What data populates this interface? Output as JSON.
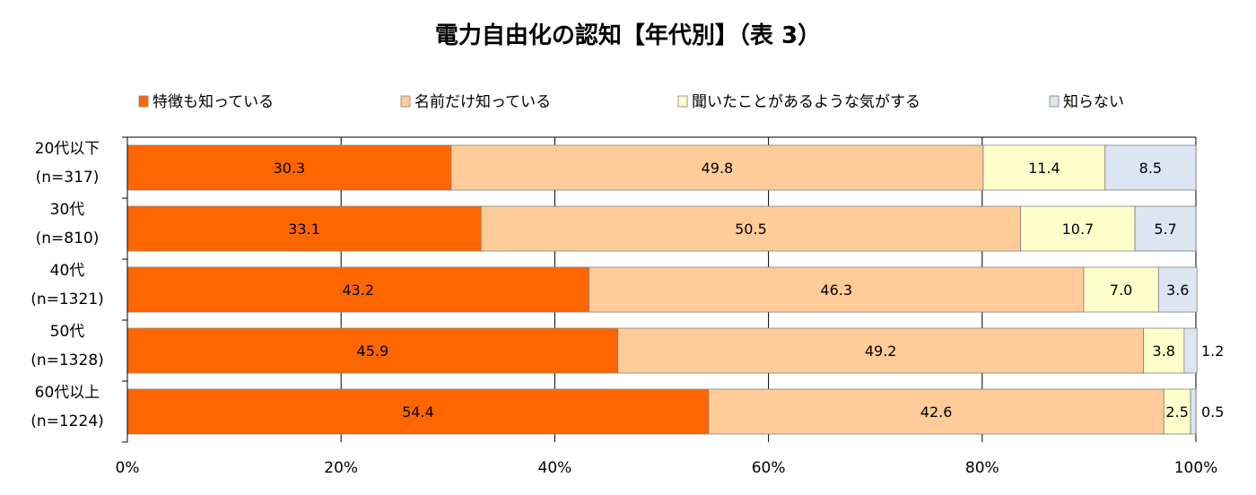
{
  "chart_data": {
    "type": "bar",
    "orientation": "horizontal",
    "stacked": true,
    "title": "電力自由化の認知【年代別】（表 3）",
    "categories": [
      [
        "20代以下",
        "(n=317)"
      ],
      [
        "30代",
        "(n=810)"
      ],
      [
        "40代",
        "(n=1321)"
      ],
      [
        "50代",
        "(n=1328)"
      ],
      [
        "60代以上",
        "(n=1224)"
      ]
    ],
    "series": [
      {
        "name": "特徴も知っている",
        "color": "#FF6600",
        "values": [
          30.3,
          33.1,
          43.2,
          45.9,
          54.4
        ]
      },
      {
        "name": "名前だけ知っている",
        "color": "#FFCC99",
        "values": [
          49.8,
          50.5,
          46.3,
          49.2,
          42.6
        ]
      },
      {
        "name": "聞いたことがあるような気がする",
        "color": "#FFFFCC",
        "values": [
          11.4,
          10.7,
          7.0,
          3.8,
          2.5
        ]
      },
      {
        "name": "知らない",
        "color": "#DCE6F2",
        "values": [
          8.5,
          5.7,
          3.6,
          1.2,
          0.5
        ]
      }
    ],
    "x_ticks": [
      "0%",
      "20%",
      "40%",
      "60%",
      "80%",
      "100%"
    ],
    "xlim": [
      0,
      100
    ],
    "grid": true,
    "legend_position": "top"
  }
}
